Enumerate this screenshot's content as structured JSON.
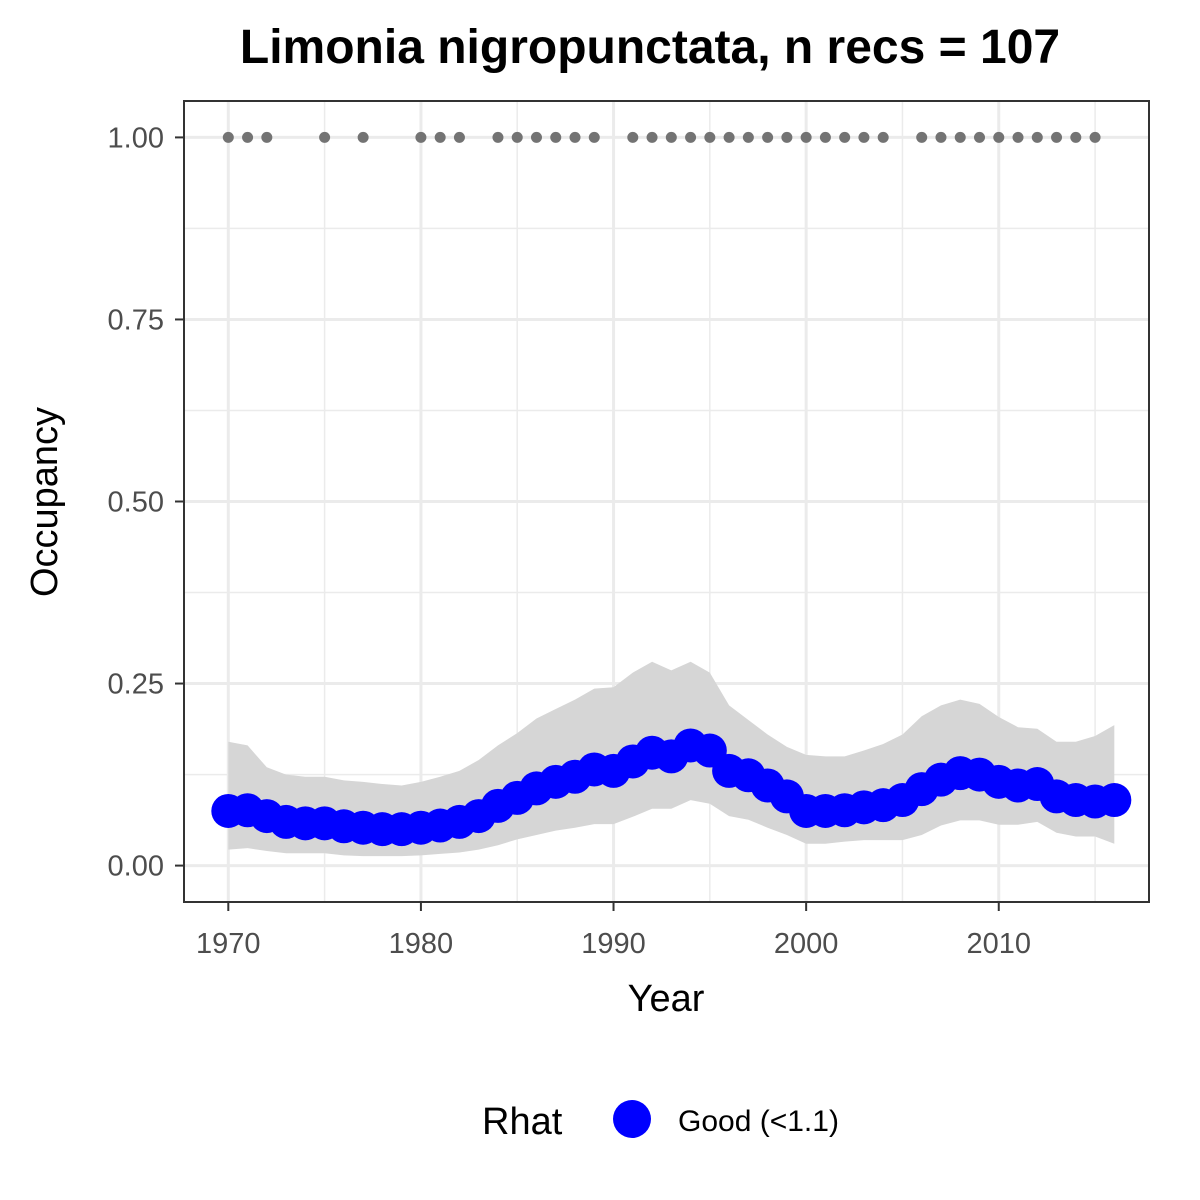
{
  "chart_data": {
    "type": "line",
    "title": "Limonia nigropunctata, n recs = 107",
    "xlabel": "Year",
    "ylabel": "Occupancy",
    "xlim": [
      1967.7,
      2017.8
    ],
    "ylim": [
      -0.05,
      1.05
    ],
    "x_ticks": [
      1970,
      1980,
      1990,
      2000,
      2010
    ],
    "x_tick_labels": [
      "1970",
      "1980",
      "1990",
      "2000",
      "2010"
    ],
    "y_ticks": [
      0,
      0.25,
      0.5,
      0.75,
      1.0
    ],
    "y_tick_labels": [
      "0.00",
      "0.25",
      "0.50",
      "0.75",
      "1.00"
    ],
    "grid": true,
    "legend": {
      "title": "Rhat",
      "position": "bottom",
      "items": [
        {
          "label": "Good (<1.1)",
          "color": "#0000ff"
        }
      ]
    },
    "series": [
      {
        "name": "Good (<1.1)",
        "color": "#0000ff",
        "x": [
          1970,
          1971,
          1972,
          1973,
          1974,
          1975,
          1976,
          1977,
          1978,
          1979,
          1980,
          1981,
          1982,
          1983,
          1984,
          1985,
          1986,
          1987,
          1988,
          1989,
          1990,
          1991,
          1992,
          1993,
          1994,
          1995,
          1996,
          1997,
          1998,
          1999,
          2000,
          2001,
          2002,
          2003,
          2004,
          2005,
          2006,
          2007,
          2008,
          2009,
          2010,
          2011,
          2012,
          2013,
          2014,
          2015,
          2016
        ],
        "values": [
          0.075,
          0.076,
          0.068,
          0.06,
          0.058,
          0.058,
          0.054,
          0.052,
          0.05,
          0.05,
          0.052,
          0.055,
          0.06,
          0.068,
          0.082,
          0.093,
          0.106,
          0.115,
          0.122,
          0.132,
          0.13,
          0.143,
          0.155,
          0.15,
          0.165,
          0.158,
          0.13,
          0.124,
          0.11,
          0.095,
          0.075,
          0.075,
          0.076,
          0.08,
          0.083,
          0.09,
          0.105,
          0.118,
          0.127,
          0.125,
          0.115,
          0.11,
          0.112,
          0.095,
          0.09,
          0.088,
          0.09
        ],
        "lower": [
          0.022,
          0.024,
          0.02,
          0.017,
          0.017,
          0.017,
          0.014,
          0.013,
          0.013,
          0.013,
          0.014,
          0.016,
          0.018,
          0.022,
          0.028,
          0.036,
          0.042,
          0.048,
          0.052,
          0.057,
          0.057,
          0.067,
          0.078,
          0.078,
          0.09,
          0.085,
          0.068,
          0.063,
          0.052,
          0.042,
          0.03,
          0.03,
          0.033,
          0.035,
          0.035,
          0.035,
          0.042,
          0.055,
          0.062,
          0.062,
          0.056,
          0.056,
          0.06,
          0.045,
          0.04,
          0.04,
          0.03
        ],
        "upper": [
          0.17,
          0.165,
          0.135,
          0.125,
          0.122,
          0.122,
          0.117,
          0.115,
          0.112,
          0.11,
          0.115,
          0.122,
          0.13,
          0.145,
          0.165,
          0.182,
          0.202,
          0.215,
          0.228,
          0.243,
          0.245,
          0.265,
          0.28,
          0.268,
          0.28,
          0.265,
          0.22,
          0.2,
          0.18,
          0.163,
          0.152,
          0.15,
          0.15,
          0.158,
          0.167,
          0.18,
          0.205,
          0.22,
          0.228,
          0.222,
          0.204,
          0.19,
          0.188,
          0.17,
          0.17,
          0.178,
          0.193
        ]
      }
    ],
    "record_years": [
      1970,
      1971,
      1972,
      1975,
      1977,
      1980,
      1981,
      1982,
      1984,
      1985,
      1986,
      1987,
      1988,
      1989,
      1991,
      1992,
      1993,
      1994,
      1995,
      1996,
      1997,
      1998,
      1999,
      2000,
      2001,
      2002,
      2003,
      2004,
      2006,
      2007,
      2008,
      2009,
      2010,
      2011,
      2012,
      2013,
      2014,
      2015
    ],
    "record_value": 1.0,
    "record_color": "#737373",
    "ribbon_color": "#d6d6d6"
  }
}
